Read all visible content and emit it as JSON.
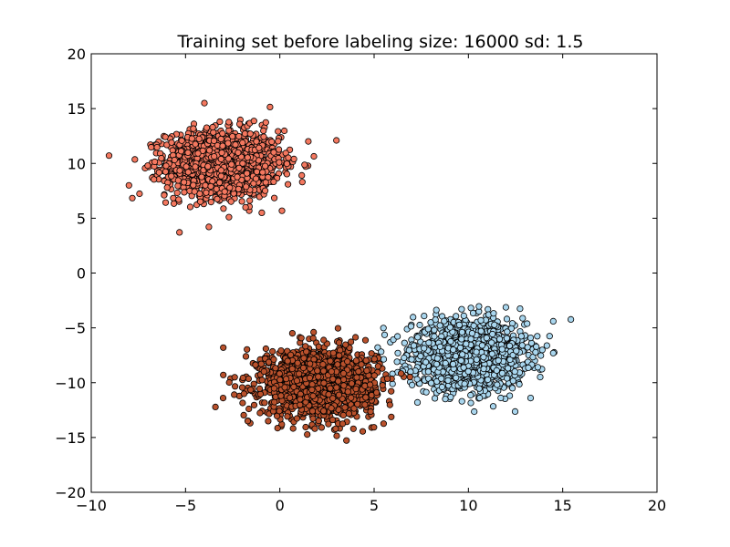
{
  "chart_data": {
    "type": "scatter",
    "title": "Training set before labeling size: 16000 sd: 1.5",
    "xlabel": "",
    "ylabel": "",
    "xlim": [
      -10,
      20
    ],
    "ylim": [
      -20,
      20
    ],
    "xticks": [
      -10,
      -5,
      0,
      5,
      10,
      15,
      20
    ],
    "yticks": [
      -20,
      -15,
      -10,
      -5,
      0,
      5,
      10,
      15,
      20
    ],
    "grid": false,
    "clusters": [
      {
        "color": "#f4785f",
        "center": [
          -3,
          10
        ],
        "sd": 1.5,
        "points_estimated": 4000
      },
      {
        "color": "#a9d6ee",
        "center": [
          10,
          -7.5
        ],
        "sd": 1.5,
        "points_estimated": 4000
      },
      {
        "color": "#b9512c",
        "center": [
          2,
          -10
        ],
        "sd": 1.5,
        "points_estimated": 4000
      }
    ],
    "outlier_points": [
      {
        "cluster": 0,
        "x": 3,
        "y": 12.1
      },
      {
        "cluster": 0,
        "x": -4,
        "y": 15.5
      },
      {
        "cluster": 0,
        "x": -2.7,
        "y": 5.1
      },
      {
        "cluster": 0,
        "x": -8,
        "y": 8
      },
      {
        "cluster": 2,
        "x": -3,
        "y": -6.8
      },
      {
        "cluster": 2,
        "x": -3,
        "y": -9.3
      },
      {
        "cluster": 2,
        "x": -1.7,
        "y": -13.5
      },
      {
        "cluster": 2,
        "x": 3.9,
        "y": -14.2
      },
      {
        "cluster": 1,
        "x": 14.5,
        "y": -4.4
      },
      {
        "cluster": 1,
        "x": 14.5,
        "y": -7.3
      },
      {
        "cluster": 1,
        "x": 13.3,
        "y": -11.4
      },
      {
        "cluster": 1,
        "x": 7.3,
        "y": -11.8
      }
    ]
  }
}
